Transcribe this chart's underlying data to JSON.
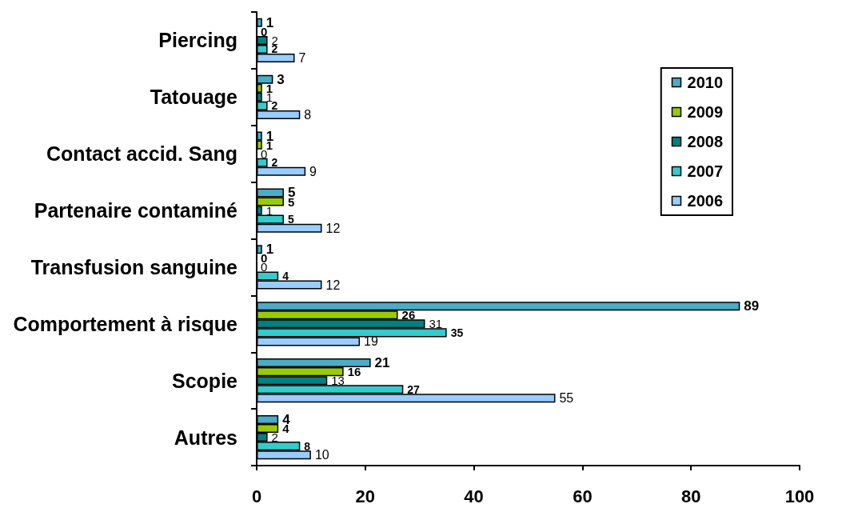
{
  "chart_data": {
    "type": "bar",
    "orientation": "horizontal",
    "categories": [
      "Piercing",
      "Tatouage",
      "Contact accid. Sang",
      "Partenaire contaminé",
      "Transfusion sanguine",
      "Comportement à risque",
      "Scopie",
      "Autres"
    ],
    "series": [
      {
        "name": "2010",
        "color": "#4bacc6",
        "values": [
          1,
          3,
          1,
          5,
          1,
          89,
          21,
          4
        ]
      },
      {
        "name": "2009",
        "color": "#99cc00",
        "values": [
          0,
          1,
          1,
          5,
          0,
          26,
          16,
          4
        ]
      },
      {
        "name": "2008",
        "color": "#008080",
        "values": [
          2,
          1,
          0,
          1,
          0,
          31,
          13,
          2
        ]
      },
      {
        "name": "2007",
        "color": "#33cccc",
        "values": [
          2,
          2,
          2,
          5,
          4,
          35,
          27,
          8
        ]
      },
      {
        "name": "2006",
        "color": "#99ccff",
        "values": [
          7,
          8,
          9,
          12,
          12,
          19,
          55,
          10
        ]
      }
    ],
    "xlim": [
      0,
      100
    ],
    "xticks": [
      0,
      20,
      40,
      60,
      80,
      100
    ],
    "data_labels": true,
    "grid": false,
    "legend": "top right"
  }
}
